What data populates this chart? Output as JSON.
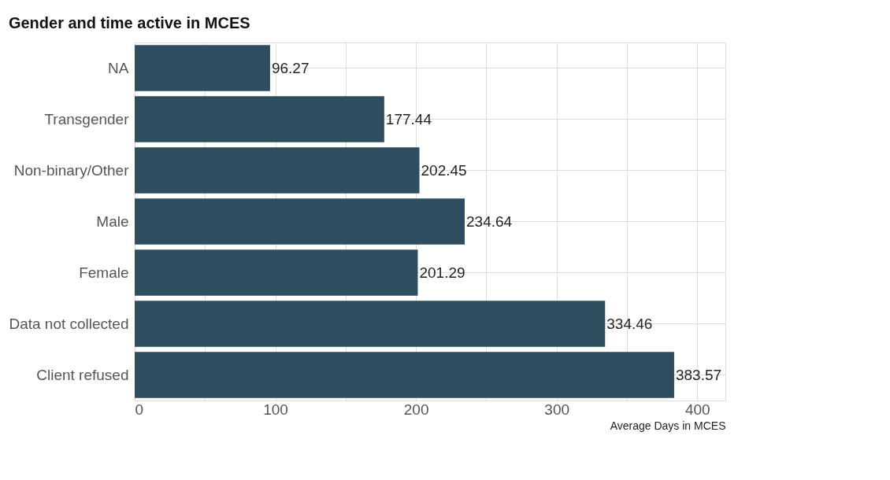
{
  "chart_data": {
    "type": "bar",
    "orientation": "horizontal",
    "title": "Gender and time active in MCES",
    "xlabel": "Average Days in MCES",
    "categories": [
      "NA",
      "Transgender",
      "Non-binary/Other",
      "Male",
      "Female",
      "Data not collected",
      "Client refused"
    ],
    "values": [
      96.27,
      177.44,
      202.45,
      234.64,
      201.29,
      334.46,
      383.57
    ],
    "color": "#2e4d5f",
    "data_labels": true,
    "xlim": [
      0,
      420
    ],
    "xticks": [
      0,
      {
        "value": 50,
        "label": null
      },
      100,
      {
        "value": 150,
        "label": null
      },
      200,
      {
        "value": 250,
        "label": null
      },
      300,
      {
        "value": 350,
        "label": null
      },
      400
    ],
    "grid": true
  }
}
